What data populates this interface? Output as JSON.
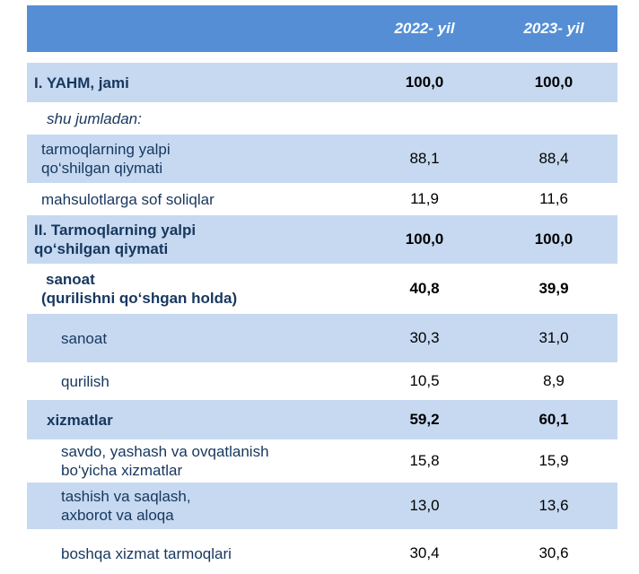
{
  "header": {
    "col1": "2022- yil",
    "col2": "2023- yil"
  },
  "rows": [
    {
      "label": "I. YAHM, jami",
      "v1": "100,0",
      "v2": "100,0"
    },
    {
      "label": "shu jumladan:",
      "v1": "",
      "v2": ""
    },
    {
      "label_l1": "tarmoqlarning yalpi",
      "label_l2": "qo‘shilgan qiymati",
      "v1": "88,1",
      "v2": "88,4"
    },
    {
      "label": "mahsulotlarga sof soliqlar",
      "v1": "11,9",
      "v2": "11,6"
    },
    {
      "label_l1": "II. Tarmoqlarning yalpi",
      "label_l2": "qo‘shilgan qiymati",
      "v1": "100,0",
      "v2": "100,0"
    },
    {
      "label_l1": "sanoat",
      "label_l2": "(qurilishni qo‘shgan holda)",
      "v1": "40,8",
      "v2": "39,9"
    },
    {
      "label": "sanoat",
      "v1": "30,3",
      "v2": "31,0"
    },
    {
      "label": "qurilish",
      "v1": "10,5",
      "v2": "8,9"
    },
    {
      "label": "xizmatlar",
      "v1": "59,2",
      "v2": "60,1"
    },
    {
      "label_l1": "savdo, yashash va ovqatlanish",
      "label_l2": "bo‘yicha xizmatlar",
      "v1": "15,8",
      "v2": "15,9"
    },
    {
      "label_l1": "tashish va saqlash,",
      "label_l2": "axborot va aloqa",
      "v1": "13,0",
      "v2": "13,6"
    },
    {
      "label": "boshqa xizmat tarmoqlari",
      "v1": "30,4",
      "v2": "30,6"
    }
  ]
}
